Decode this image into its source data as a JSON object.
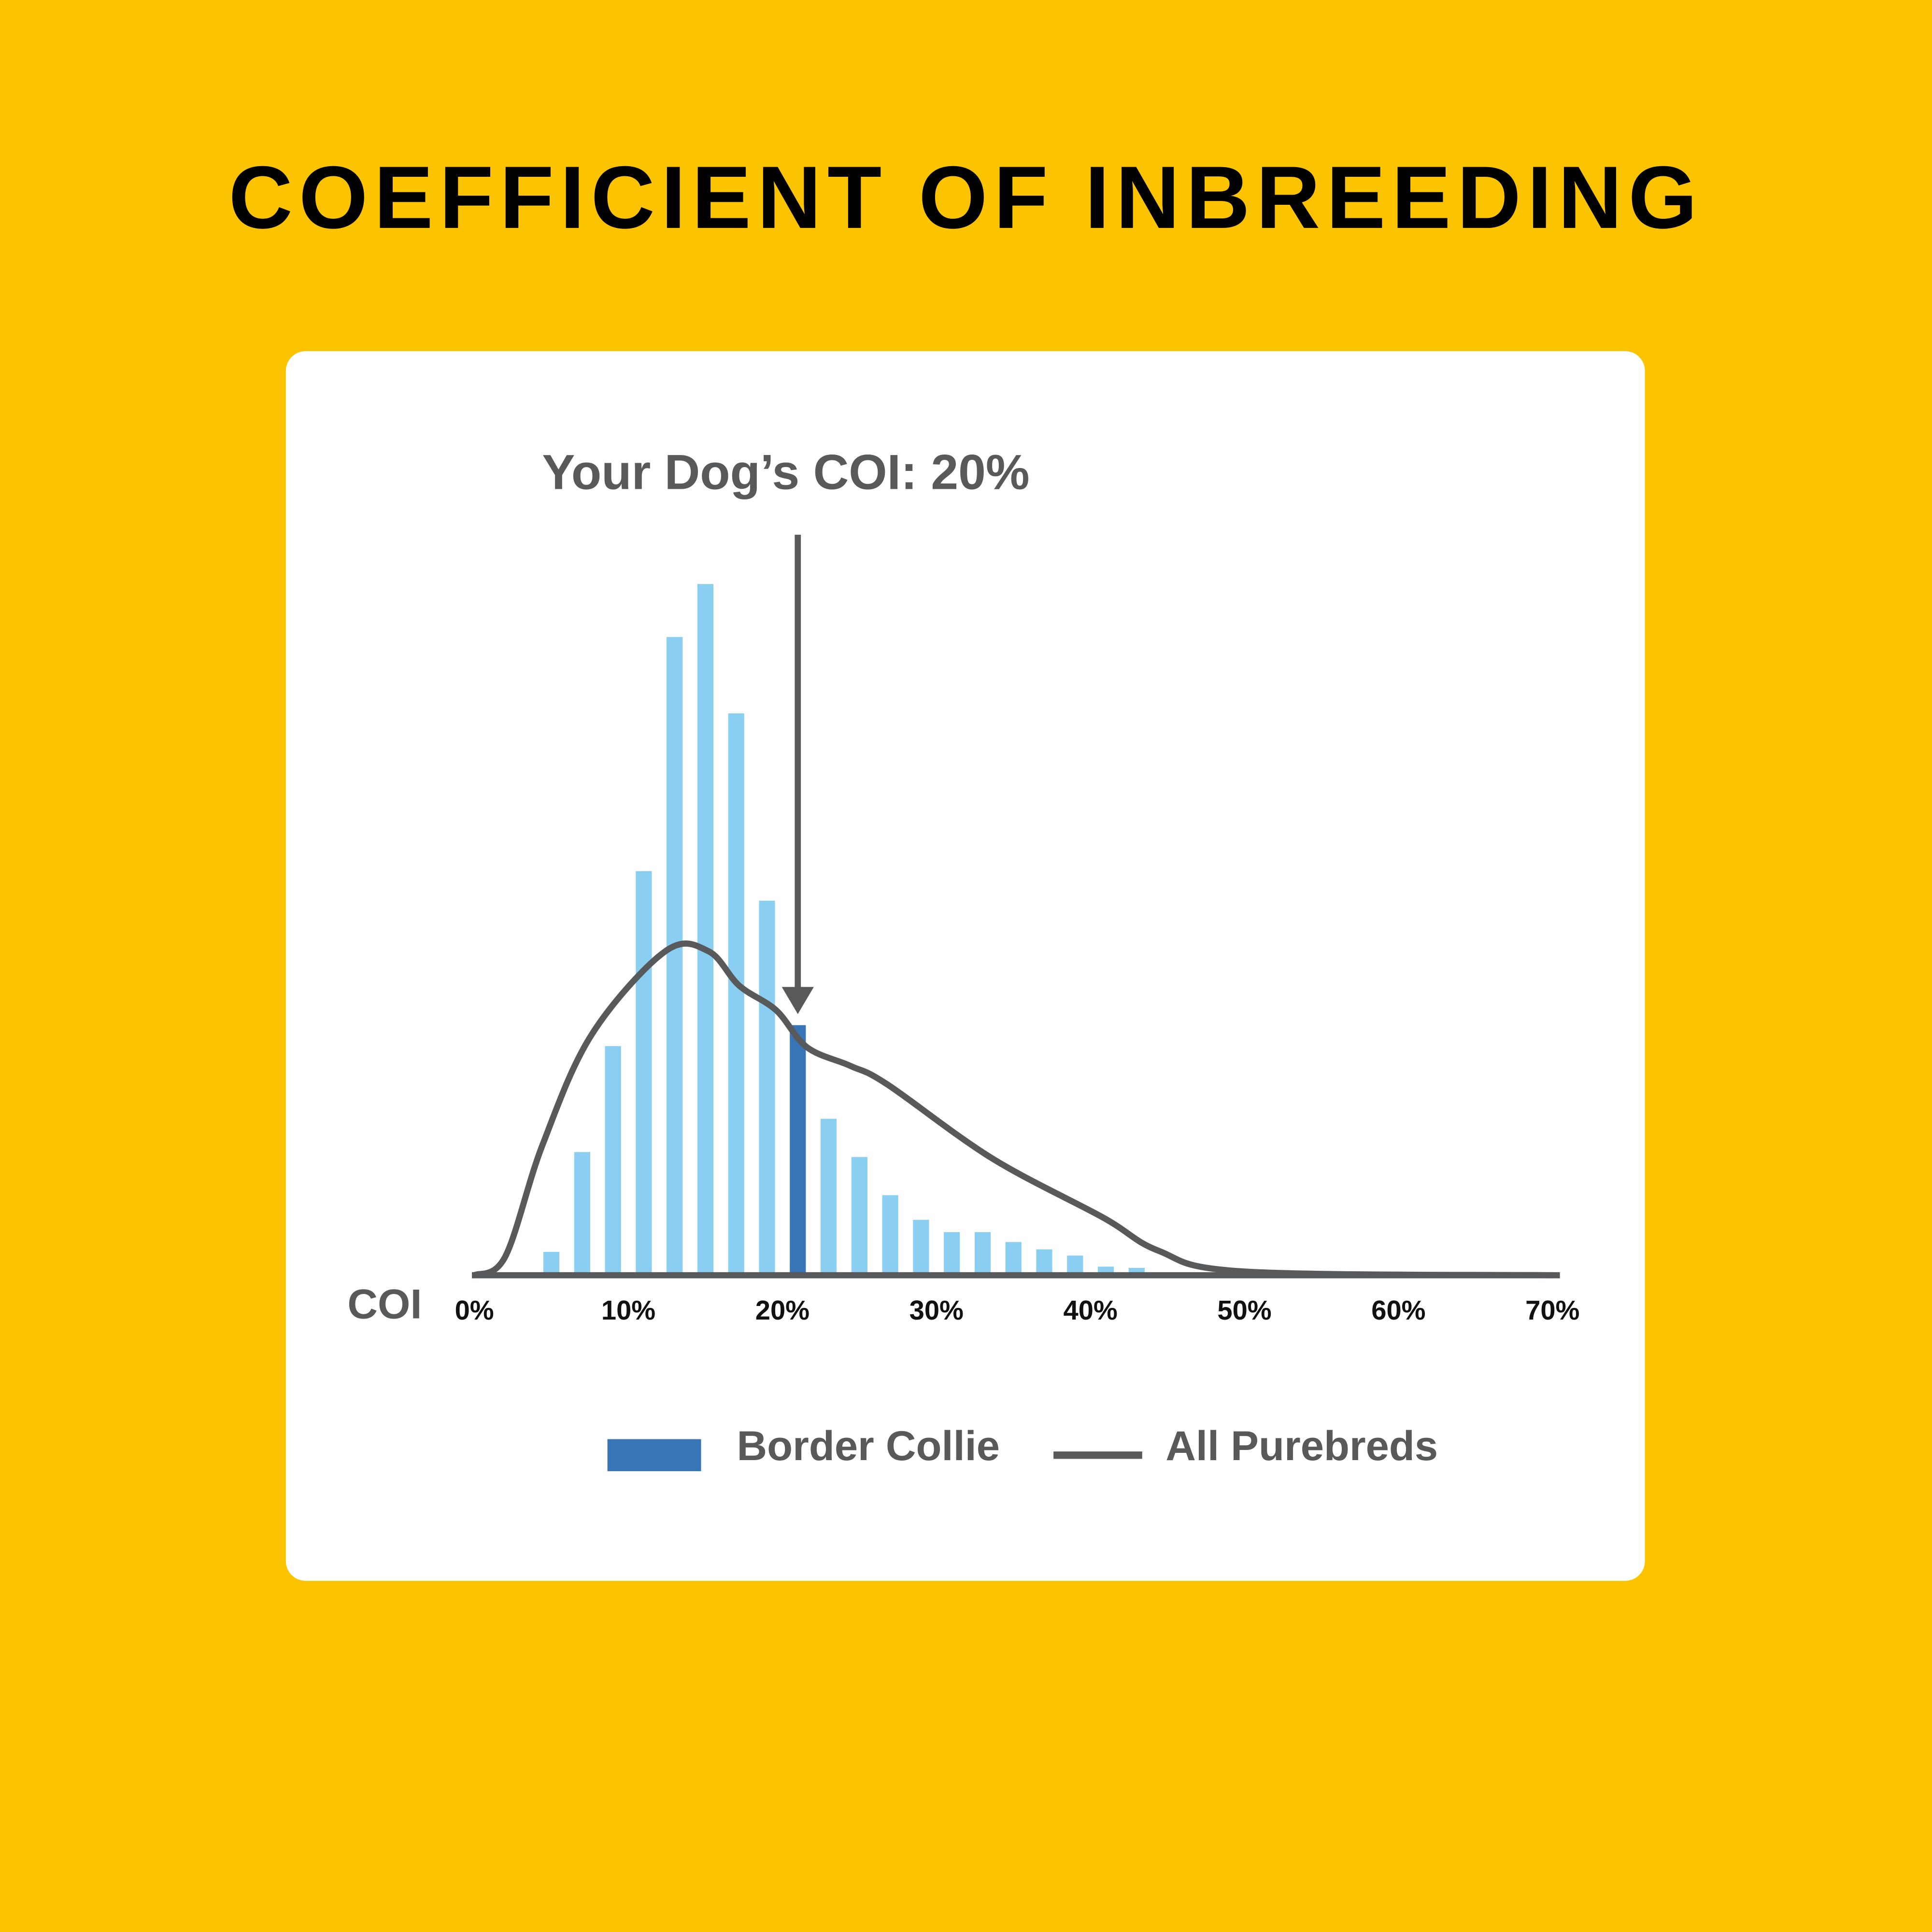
{
  "colors": {
    "background": "#FCC400",
    "bar": "#8ACFF2",
    "highlight": "#3775B7",
    "line": "#58595B",
    "axis": "#58595B"
  },
  "chart_data": {
    "type": "bar",
    "title": "COEFFICIENT OF INBREEDING",
    "annotation": "Your Dog’s COI: 20%",
    "annotation_value": 21,
    "xlabel": "COI",
    "ylabel": "",
    "xlim": [
      0,
      70
    ],
    "ylim": [
      0,
      600
    ],
    "x_ticks": [
      "0%",
      "10%",
      "20%",
      "30%",
      "40%",
      "50%",
      "60%",
      "70%"
    ],
    "x_tick_values": [
      0,
      10,
      20,
      30,
      40,
      50,
      60,
      70
    ],
    "grid": false,
    "legend_position": "bottom",
    "series": [
      {
        "name": "Border Collie",
        "type": "bar",
        "x": [
          5,
          7,
          9,
          11,
          13,
          15,
          17,
          19,
          21,
          23,
          25,
          27,
          29,
          31,
          33,
          35,
          37,
          39,
          41,
          43
        ],
        "values": [
          19,
          100,
          186,
          328,
          518,
          561,
          456,
          304,
          203,
          127,
          96,
          65,
          45,
          35,
          35,
          27,
          21,
          16,
          7,
          6
        ],
        "highlight_index": 8
      },
      {
        "name": "All Purebreds",
        "type": "line",
        "x": [
          0,
          2,
          4.4,
          7.6,
          12.4,
          15.2,
          17.2,
          19.6,
          21.6,
          24.4,
          26.8,
          33.6,
          40.8,
          44.4,
          50,
          70
        ],
        "values": [
          0,
          15,
          105,
          195,
          263,
          263,
          235,
          215,
          185,
          170,
          155,
          95,
          47,
          20,
          3,
          0
        ]
      }
    ]
  }
}
